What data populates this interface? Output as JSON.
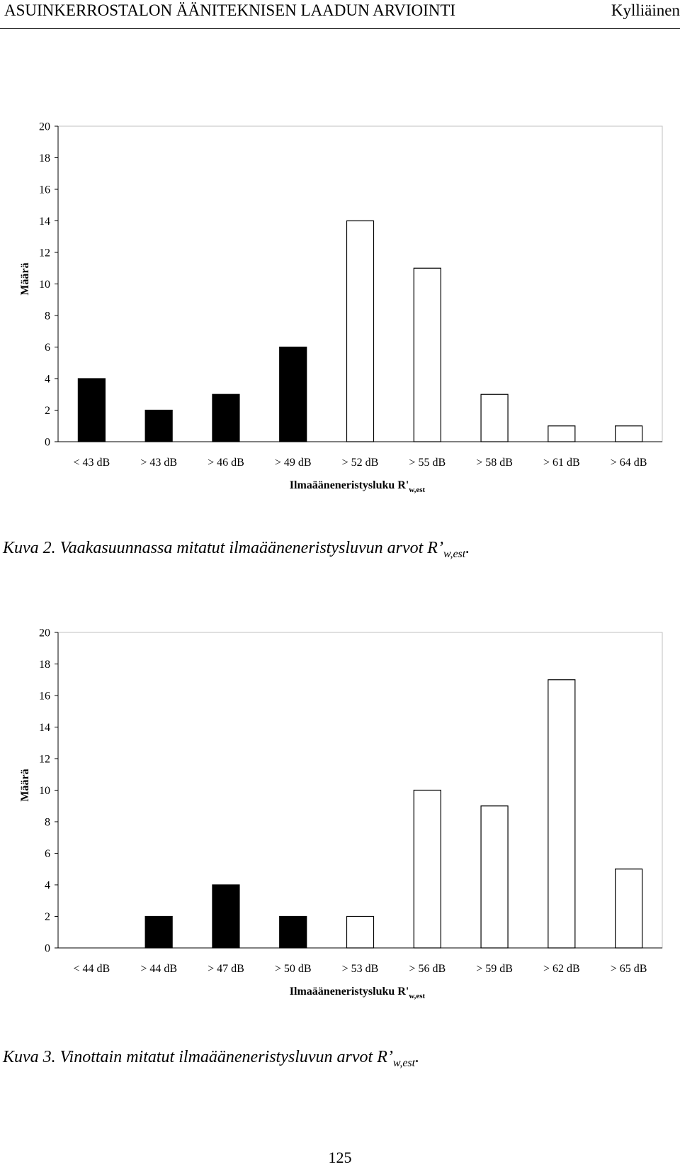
{
  "header": {
    "title": "ASUINKERROSTALON ÄÄNITEKNISEN LAADUN ARVIOINTI",
    "author": "Kylliäinen"
  },
  "captions": [
    {
      "label": "Kuva 2.",
      "text": " Vaakasuunnassa mitatut ilmaääneneristysluvun arvot R’",
      "sub": "w,est",
      "end": "."
    },
    {
      "label": "Kuva 3.",
      "text": " Vinottain mitatut ilmaääneneristysluvun arvot R’",
      "sub": "w,est",
      "end": "."
    }
  ],
  "page_number": "125",
  "colors": {
    "filled_bar": "#000000",
    "open_bar": "#ffffff",
    "axis": "#000000",
    "plot_border": "#c0c0c0"
  },
  "chart_data": [
    {
      "type": "bar",
      "categories": [
        "< 43 dB",
        "> 43 dB",
        "> 46 dB",
        "> 49 dB",
        "> 52 dB",
        "> 55 dB",
        "> 58 dB",
        "> 61 dB",
        "> 64 dB"
      ],
      "values": [
        4,
        2,
        3,
        6,
        14,
        11,
        3,
        1,
        1
      ],
      "bar_fill": [
        "filled",
        "filled",
        "filled",
        "filled",
        "open",
        "open",
        "open",
        "open",
        "open"
      ],
      "ylabel": "Määrä",
      "xlabel": "Ilmaääneneristysluku R'",
      "xlabel_sub": "w,est",
      "ylim": [
        0,
        20
      ],
      "yticks": [
        0,
        2,
        4,
        6,
        8,
        10,
        12,
        14,
        16,
        18,
        20
      ],
      "grid": false
    },
    {
      "type": "bar",
      "categories": [
        "< 44 dB",
        "> 44 dB",
        "> 47 dB",
        "> 50 dB",
        "> 53 dB",
        "> 56 dB",
        "> 59 dB",
        "> 62 dB",
        "> 65 dB"
      ],
      "values": [
        0,
        2,
        4,
        2,
        2,
        10,
        9,
        17,
        5
      ],
      "bar_fill": [
        "filled",
        "filled",
        "filled",
        "filled",
        "open",
        "open",
        "open",
        "open",
        "open"
      ],
      "ylabel": "Määrä",
      "xlabel": "Ilmaääneneristysluku R'",
      "xlabel_sub": "w,est",
      "ylim": [
        0,
        20
      ],
      "yticks": [
        0,
        2,
        4,
        6,
        8,
        10,
        12,
        14,
        16,
        18,
        20
      ],
      "grid": false
    }
  ]
}
